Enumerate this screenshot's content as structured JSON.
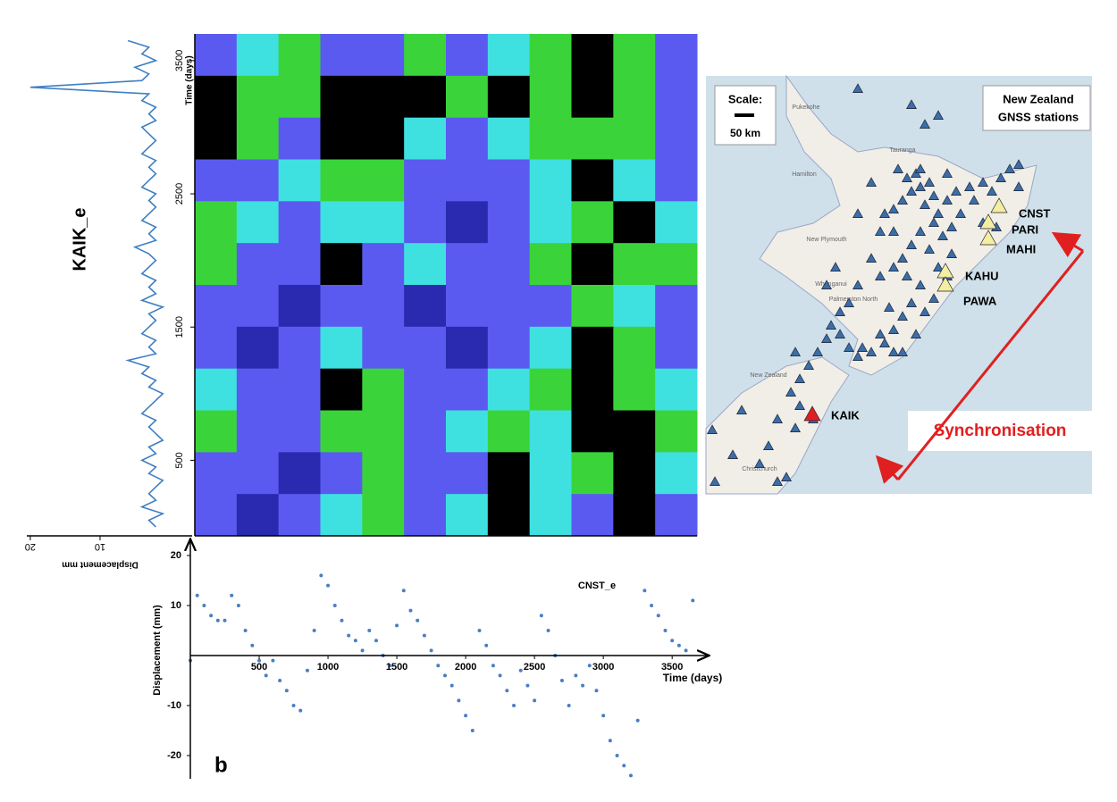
{
  "chart_data": [
    {
      "type": "line",
      "orientation": "vertical",
      "title": "KAIK_e",
      "ylabel": "Displacement mm",
      "color": "#3f7fc4",
      "xlim": [
        0,
        3700
      ],
      "ylim": [
        0,
        20.5
      ],
      "yticks": [
        20,
        10
      ],
      "x": [
        0,
        50,
        100,
        150,
        200,
        250,
        300,
        350,
        400,
        450,
        500,
        550,
        600,
        650,
        700,
        750,
        800,
        850,
        900,
        950,
        1000,
        1050,
        1100,
        1150,
        1200,
        1250,
        1300,
        1350,
        1400,
        1450,
        1500,
        1550,
        1600,
        1650,
        1700,
        1750,
        1800,
        1850,
        1900,
        1950,
        2000,
        2050,
        2100,
        2150,
        2200,
        2250,
        2300,
        2350,
        2400,
        2450,
        2500,
        2550,
        2600,
        2650,
        2700,
        2750,
        2800,
        2850,
        2900,
        2950,
        3000,
        3050,
        3100,
        3150,
        3200,
        3250,
        3300,
        3350,
        3400,
        3450,
        3500,
        3550,
        3600,
        3650
      ],
      "values": [
        2,
        3,
        1,
        4,
        2,
        3,
        2,
        1,
        3,
        2,
        4,
        2,
        3,
        1,
        2,
        3,
        2,
        4,
        3,
        2,
        1,
        3,
        2,
        4,
        3,
        6,
        2,
        3,
        2,
        4,
        3,
        2,
        3,
        1,
        4,
        2,
        3,
        2,
        4,
        3,
        2,
        3,
        5,
        2,
        3,
        2,
        4,
        3,
        2,
        3,
        2,
        4,
        3,
        2,
        3,
        2,
        4,
        3,
        2,
        3,
        4,
        2,
        3,
        2,
        4,
        3,
        20,
        4,
        3,
        5,
        2,
        4,
        3,
        6
      ]
    },
    {
      "type": "heatmap",
      "ylabel": "Time (days)",
      "ylim": [
        0,
        3700
      ],
      "yticks": [
        500,
        1500,
        2500,
        3500
      ],
      "colors": [
        "#000000",
        "#3ad43a",
        "#3fe0e0",
        "#5a5af0",
        "#2a2ab0"
      ],
      "values": [
        [
          3,
          2,
          1,
          3,
          3,
          1,
          3,
          2,
          1,
          0,
          1,
          3
        ],
        [
          0,
          1,
          1,
          0,
          0,
          0,
          1,
          0,
          1,
          0,
          1,
          3
        ],
        [
          0,
          1,
          3,
          0,
          0,
          2,
          3,
          2,
          1,
          1,
          1,
          3
        ],
        [
          3,
          3,
          2,
          1,
          1,
          3,
          3,
          3,
          2,
          0,
          2,
          3
        ],
        [
          1,
          2,
          3,
          2,
          2,
          3,
          4,
          3,
          2,
          1,
          0,
          2
        ],
        [
          1,
          3,
          3,
          0,
          3,
          2,
          3,
          3,
          1,
          0,
          1,
          1
        ],
        [
          3,
          3,
          4,
          3,
          3,
          4,
          3,
          3,
          3,
          1,
          2,
          3
        ],
        [
          3,
          4,
          3,
          2,
          3,
          3,
          4,
          3,
          2,
          0,
          1,
          3
        ],
        [
          2,
          3,
          3,
          0,
          1,
          3,
          3,
          2,
          1,
          0,
          1,
          2
        ],
        [
          1,
          3,
          3,
          1,
          1,
          3,
          2,
          1,
          2,
          0,
          0,
          1
        ],
        [
          3,
          3,
          4,
          3,
          1,
          3,
          3,
          0,
          2,
          1,
          0,
          2
        ],
        [
          3,
          4,
          3,
          2,
          1,
          3,
          2,
          0,
          2,
          3,
          0,
          3
        ]
      ]
    },
    {
      "type": "scatter",
      "title": "CNST_e",
      "xlabel": "Time (days)",
      "ylabel": "Displacement (mm)",
      "color": "#4a7fc1",
      "xlim": [
        0,
        3700
      ],
      "ylim": [
        -24,
        22
      ],
      "xticks": [
        500,
        1000,
        1500,
        2000,
        2500,
        3000,
        3500
      ],
      "yticks": [
        -20,
        -10,
        10,
        20
      ],
      "x": [
        0,
        50,
        100,
        150,
        200,
        250,
        300,
        350,
        400,
        450,
        500,
        550,
        600,
        650,
        700,
        750,
        800,
        850,
        900,
        950,
        1000,
        1050,
        1100,
        1150,
        1200,
        1250,
        1300,
        1350,
        1400,
        1450,
        1500,
        1550,
        1600,
        1650,
        1700,
        1750,
        1800,
        1850,
        1900,
        1950,
        2000,
        2050,
        2100,
        2150,
        2200,
        2250,
        2300,
        2350,
        2400,
        2450,
        2500,
        2550,
        2600,
        2650,
        2700,
        2750,
        2800,
        2850,
        2900,
        2950,
        3000,
        3050,
        3100,
        3150,
        3200,
        3250,
        3300,
        3350,
        3400,
        3450,
        3500,
        3550,
        3600,
        3650
      ],
      "values": [
        -1,
        12,
        10,
        8,
        7,
        7,
        12,
        10,
        5,
        2,
        -1,
        -4,
        -1,
        -5,
        -7,
        -10,
        -11,
        -3,
        5,
        16,
        14,
        10,
        7,
        4,
        3,
        1,
        5,
        3,
        0,
        -2,
        6,
        13,
        9,
        7,
        4,
        1,
        -2,
        -4,
        -6,
        -9,
        -12,
        -15,
        5,
        2,
        -2,
        -4,
        -7,
        -10,
        -3,
        -6,
        -9,
        8,
        5,
        0,
        -5,
        -10,
        -4,
        -6,
        -2,
        -7,
        -12,
        -17,
        -20,
        -22,
        -24,
        -13,
        13,
        10,
        8,
        5,
        3,
        2,
        1,
        11
      ]
    }
  ],
  "map": {
    "scale_title": "Scale:",
    "scale_length": "50 km",
    "title_lines": [
      "New Zealand",
      "GNSS stations"
    ],
    "annotation": "Synchronisation",
    "stations": [
      {
        "label": "CNST",
        "color": "#f3eea0"
      },
      {
        "label": "PARI",
        "color": "#f3eea0"
      },
      {
        "label": "MAHI",
        "color": "#f3eea0"
      },
      {
        "label": "KAHU",
        "color": "#f3eea0"
      },
      {
        "label": "PAWA",
        "color": "#f3eea0"
      },
      {
        "label": "KAIK",
        "color": "#e02020"
      }
    ],
    "places": [
      "Pukekohe",
      "Hamilton",
      "Tauranga",
      "New Plymouth",
      "Whanganui",
      "Palmerston North",
      "New Zealand",
      "Christchurch"
    ]
  },
  "panel_label": "b"
}
